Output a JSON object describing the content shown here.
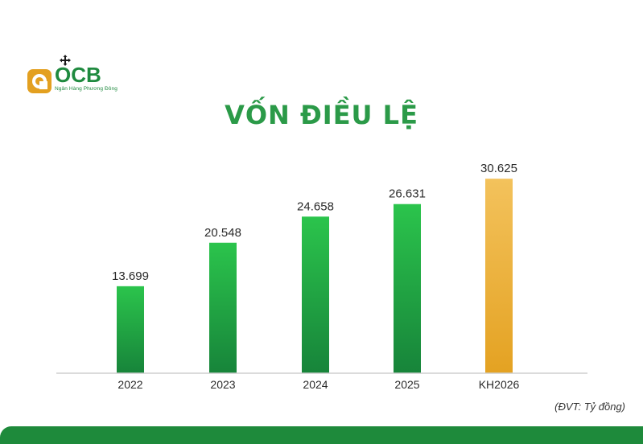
{
  "logo": {
    "word": "OCB",
    "subtitle": "Ngân Hàng Phương Đông",
    "colors": {
      "gold": "#e3a020",
      "green": "#1f8a3f"
    }
  },
  "title": "VỐN ĐIỀU LỆ",
  "unit_note": "(ĐVT: Tỷ đồng)",
  "chart_data": {
    "type": "bar",
    "title": "VỐN ĐIỀU LỆ",
    "xlabel": "",
    "ylabel": "",
    "unit": "Tỷ đồng",
    "categories": [
      "2022",
      "2023",
      "2024",
      "2025",
      "KH2026"
    ],
    "values": [
      13.699,
      20.548,
      24.658,
      26.631,
      30.625
    ],
    "value_labels": [
      "13.699",
      "20.548",
      "24.658",
      "26.631",
      "30.625"
    ],
    "highlight": "KH2026",
    "ylim": [
      0,
      38.5
    ],
    "grid": false,
    "legend": "none",
    "colors": {
      "bar_top": "#2bc44c",
      "bar_bottom": "#17843a",
      "highlight_top": "#f3c25c",
      "highlight_bottom": "#e4a222",
      "baseline": "#cfcfcf",
      "text": "#2a2a2a"
    }
  }
}
